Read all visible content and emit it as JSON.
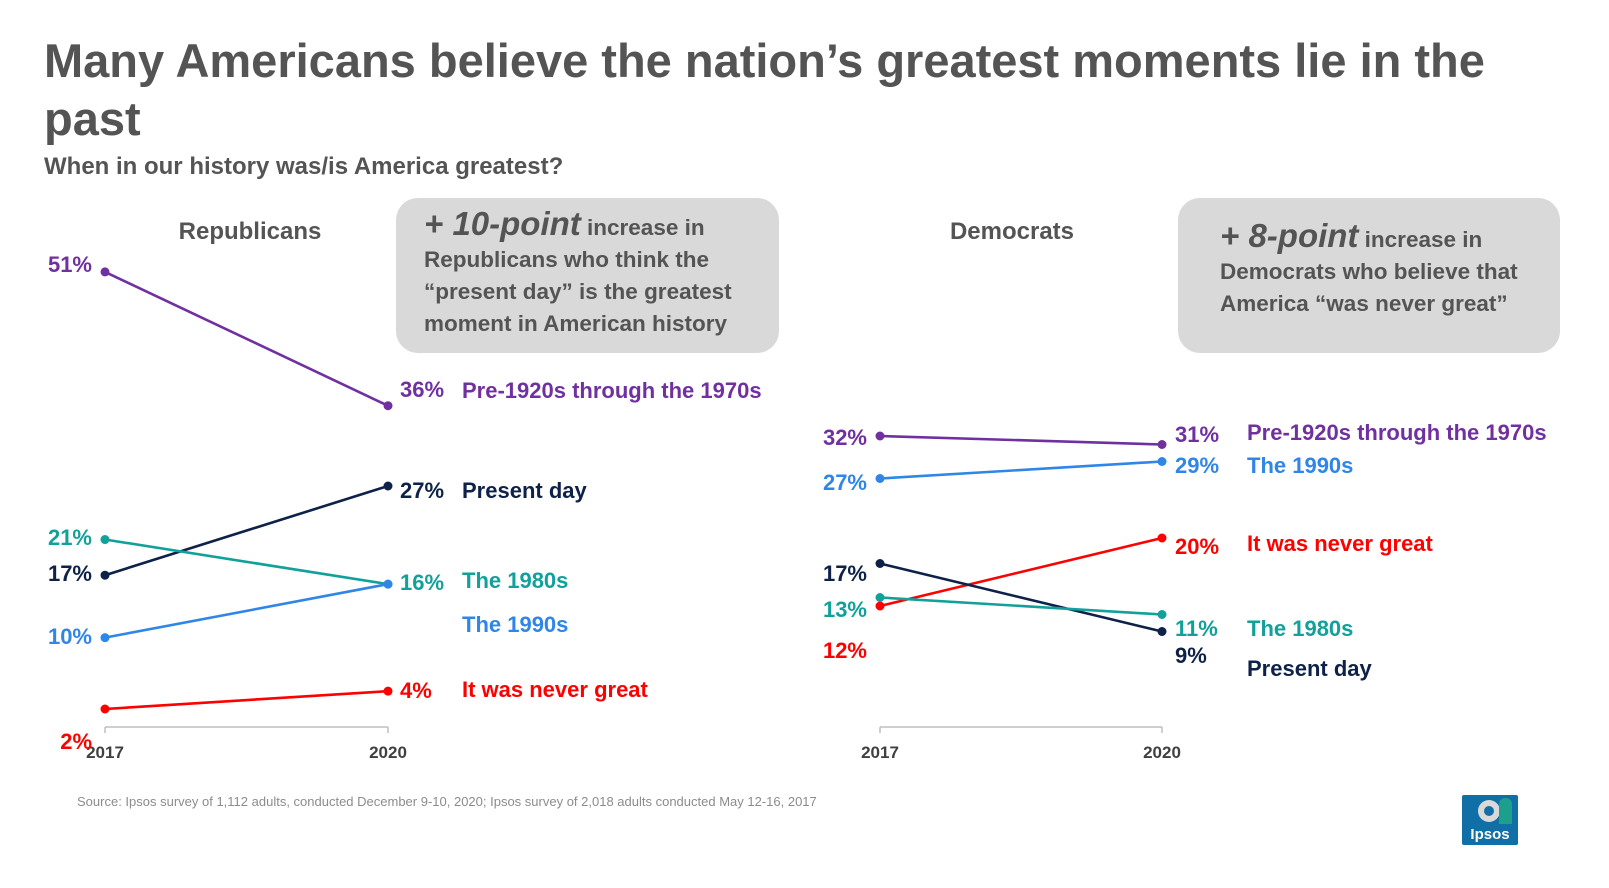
{
  "title": "Many Americans believe the nation’s greatest moments lie in the past",
  "subtitle": "When in our history was/is America greatest?",
  "callouts": {
    "republicans": {
      "big": "+ 10-point",
      "rest": " increase in Republicans who think the “present day” is the greatest moment in American history"
    },
    "democrats": {
      "big": "+ 8-point",
      "rest": " increase in Democrats who believe that America “was never great”"
    }
  },
  "source": "Source: Ipsos survey of  1,112 adults, conducted December 9-10, 2020; Ipsos survey of 2,018 adults conducted May 12-16, 2017",
  "logo_text": "Ipsos",
  "colors": {
    "pre1920": "#7030a0",
    "present": "#0d2149",
    "1980s": "#12a19a",
    "1990s": "#2f86e8",
    "never": "#ff0000",
    "axis": "#bfbfbf"
  },
  "chart_data": [
    {
      "type": "line",
      "title": "Republicans",
      "x": [
        "2017",
        "2020"
      ],
      "series": [
        {
          "key": "pre1920",
          "name": "Pre-1920s through the 1970s",
          "values": [
            51,
            36
          ],
          "labels": [
            "51%",
            "36%"
          ]
        },
        {
          "key": "present",
          "name": "Present day",
          "values": [
            17,
            27
          ],
          "labels": [
            "17%",
            "27%"
          ]
        },
        {
          "key": "1980s",
          "name": "The 1980s",
          "values": [
            21,
            16
          ],
          "labels": [
            "21%",
            "16%"
          ]
        },
        {
          "key": "1990s",
          "name": "The 1990s",
          "values": [
            10,
            16
          ],
          "labels": [
            "10%",
            ""
          ]
        },
        {
          "key": "never",
          "name": "It was never great",
          "values": [
            2,
            4
          ],
          "labels": [
            "2%",
            "4%"
          ]
        }
      ]
    },
    {
      "type": "line",
      "title": "Democrats",
      "x": [
        "2017",
        "2020"
      ],
      "series": [
        {
          "key": "pre1920",
          "name": "Pre-1920s through the 1970s",
          "values": [
            32,
            31
          ],
          "labels": [
            "32%",
            "31%"
          ]
        },
        {
          "key": "1990s",
          "name": "The 1990s",
          "values": [
            27,
            29
          ],
          "labels": [
            "27%",
            "29%"
          ]
        },
        {
          "key": "never",
          "name": "It was never great",
          "values": [
            12,
            20
          ],
          "labels": [
            "12%",
            "20%"
          ]
        },
        {
          "key": "present",
          "name": "Present day",
          "values": [
            17,
            9
          ],
          "labels": [
            "17%",
            "9%"
          ]
        },
        {
          "key": "1980s",
          "name": "The 1980s",
          "values": [
            13,
            11
          ],
          "labels": [
            "13%",
            "11%"
          ]
        }
      ]
    }
  ]
}
